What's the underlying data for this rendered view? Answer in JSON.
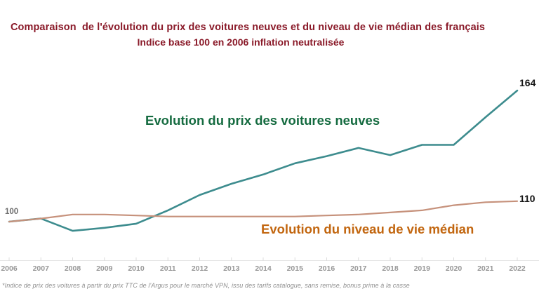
{
  "title": {
    "line1": "Comparaison  de l'évolution du prix des voitures neuves et du niveau de vie médian des français",
    "line2": "Indice base 100 en 2006 inflation neutralisée",
    "color": "#8a1a29"
  },
  "chart_data": {
    "type": "line",
    "x": [
      2006,
      2007,
      2008,
      2009,
      2010,
      2011,
      2012,
      2013,
      2014,
      2015,
      2016,
      2017,
      2018,
      2019,
      2020,
      2021,
      2022
    ],
    "series": [
      {
        "id": "voitures-neuves",
        "name": "Evolution du prix des voitures neuves",
        "line_color": "#3d8c8e",
        "label_color": "#156b40",
        "stroke_width": 2.6,
        "values": [
          100,
          101.5,
          95.5,
          97,
          99,
          105.5,
          113,
          118.5,
          123,
          128.5,
          132,
          136,
          132.5,
          137.5,
          137.5,
          151,
          164
        ],
        "end_label": "164"
      },
      {
        "id": "niveau-de-vie",
        "name": "Evolution du niveau de vie médian",
        "line_color": "#c6917b",
        "label_color": "#c2660f",
        "stroke_width": 2.2,
        "values": [
          100,
          101.5,
          103.5,
          103.5,
          103,
          102.5,
          102.5,
          102.5,
          102.5,
          102.5,
          103,
          103.5,
          104.5,
          105.5,
          108,
          109.5,
          110
        ],
        "end_label": "110"
      }
    ],
    "baseline_label": "100",
    "xlabel": "",
    "ylabel": "",
    "ylim": [
      88,
      172
    ],
    "grid": false,
    "legend": "inline-colored-labels",
    "axis_label_color": "#979797"
  },
  "footnote": "*Indice de prix des voitures à partir du prix TTC de l'Argus pour le marché VPN, issu des tarifs catalogue, sans remise, bonus prime à la casse"
}
